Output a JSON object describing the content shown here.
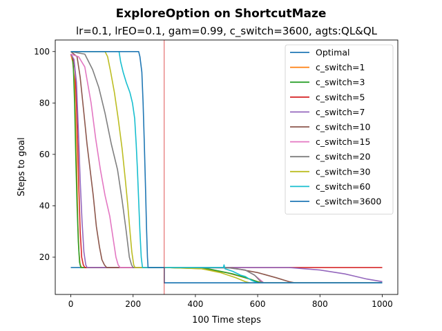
{
  "chart_data": {
    "type": "line",
    "title": "ExploreOption on ShortcutMaze",
    "subtitle": "lr=0.1, lrEO=0.1, gam=0.99, c_switch=3600, agts:QL&QL",
    "xlabel": "100 Time steps",
    "ylabel": "Steps to goal",
    "xlim": [
      -50,
      1050
    ],
    "ylim": [
      5.5,
      104.5
    ],
    "xticks": [
      0,
      200,
      400,
      600,
      800,
      1000
    ],
    "yticks": [
      20,
      40,
      60,
      80,
      100
    ],
    "grid": false,
    "legend_position": "top-right",
    "vline": {
      "x": 300,
      "color": "#d62728"
    },
    "series": [
      {
        "name": "Optimal",
        "color": "#1f77b4",
        "points": [
          [
            0,
            16
          ],
          [
            300,
            16
          ],
          [
            300,
            10
          ],
          [
            1000,
            10
          ]
        ]
      },
      {
        "name": "c_switch=1",
        "color": "#ff7f0e",
        "points": [
          [
            0,
            99
          ],
          [
            6,
            96
          ],
          [
            12,
            88
          ],
          [
            18,
            60
          ],
          [
            22,
            36
          ],
          [
            26,
            22
          ],
          [
            30,
            17
          ],
          [
            35,
            16
          ],
          [
            300,
            16
          ],
          [
            420,
            15.5
          ],
          [
            500,
            14
          ],
          [
            560,
            12
          ],
          [
            600,
            10.5
          ],
          [
            620,
            10
          ],
          [
            1000,
            10
          ]
        ]
      },
      {
        "name": "c_switch=3",
        "color": "#2ca02c",
        "points": [
          [
            0,
            99
          ],
          [
            5,
            98
          ],
          [
            8,
            94
          ],
          [
            12,
            80
          ],
          [
            16,
            58
          ],
          [
            20,
            40
          ],
          [
            24,
            26
          ],
          [
            28,
            18
          ],
          [
            32,
            16
          ],
          [
            300,
            16
          ],
          [
            440,
            15.5
          ],
          [
            520,
            13.5
          ],
          [
            575,
            11.5
          ],
          [
            610,
            10
          ],
          [
            1000,
            10
          ]
        ]
      },
      {
        "name": "c_switch=5",
        "color": "#d62728",
        "points": [
          [
            0,
            99
          ],
          [
            5,
            98
          ],
          [
            10,
            96
          ],
          [
            14,
            92
          ],
          [
            18,
            80
          ],
          [
            22,
            64
          ],
          [
            26,
            46
          ],
          [
            30,
            30
          ],
          [
            35,
            20
          ],
          [
            40,
            17
          ],
          [
            45,
            16
          ],
          [
            1000,
            16
          ]
        ]
      },
      {
        "name": "c_switch=7",
        "color": "#9467bd",
        "points": [
          [
            0,
            99
          ],
          [
            10,
            97
          ],
          [
            18,
            88
          ],
          [
            24,
            70
          ],
          [
            30,
            50
          ],
          [
            36,
            34
          ],
          [
            42,
            22
          ],
          [
            48,
            17
          ],
          [
            52,
            16
          ],
          [
            700,
            16
          ],
          [
            800,
            15
          ],
          [
            880,
            13.5
          ],
          [
            950,
            11.5
          ],
          [
            1000,
            10.5
          ]
        ]
      },
      {
        "name": "c_switch=10",
        "color": "#8c564b",
        "points": [
          [
            0,
            100
          ],
          [
            20,
            98
          ],
          [
            30,
            90
          ],
          [
            42,
            76
          ],
          [
            52,
            64
          ],
          [
            62,
            54
          ],
          [
            72,
            44
          ],
          [
            82,
            32
          ],
          [
            92,
            24
          ],
          [
            100,
            19
          ],
          [
            108,
            17
          ],
          [
            115,
            16
          ],
          [
            300,
            16
          ],
          [
            520,
            15.8
          ],
          [
            600,
            14
          ],
          [
            660,
            12
          ],
          [
            700,
            10.5
          ],
          [
            720,
            10
          ],
          [
            1000,
            10
          ]
        ]
      },
      {
        "name": "c_switch=15",
        "color": "#e377c2",
        "points": [
          [
            0,
            99
          ],
          [
            25,
            98
          ],
          [
            45,
            94
          ],
          [
            65,
            80
          ],
          [
            80,
            66
          ],
          [
            95,
            54
          ],
          [
            110,
            44
          ],
          [
            125,
            36
          ],
          [
            135,
            28
          ],
          [
            145,
            20
          ],
          [
            152,
            17
          ],
          [
            158,
            16
          ],
          [
            500,
            16
          ],
          [
            560,
            15
          ],
          [
            590,
            13
          ],
          [
            610,
            11
          ],
          [
            620,
            10
          ],
          [
            1000,
            10
          ]
        ]
      },
      {
        "name": "c_switch=20",
        "color": "#7f7f7f",
        "points": [
          [
            0,
            100
          ],
          [
            45,
            99
          ],
          [
            70,
            93
          ],
          [
            90,
            86
          ],
          [
            110,
            76
          ],
          [
            130,
            64
          ],
          [
            150,
            54
          ],
          [
            165,
            42
          ],
          [
            178,
            30
          ],
          [
            188,
            20
          ],
          [
            195,
            17
          ],
          [
            200,
            16
          ],
          [
            500,
            16
          ],
          [
            560,
            15
          ],
          [
            590,
            13
          ],
          [
            610,
            10.5
          ],
          [
            620,
            10
          ],
          [
            1000,
            10
          ]
        ]
      },
      {
        "name": "c_switch=30",
        "color": "#bcbd22",
        "points": [
          [
            0,
            100
          ],
          [
            110,
            100
          ],
          [
            118,
            98
          ],
          [
            128,
            92
          ],
          [
            140,
            84
          ],
          [
            152,
            74
          ],
          [
            165,
            62
          ],
          [
            175,
            50
          ],
          [
            183,
            40
          ],
          [
            190,
            30
          ],
          [
            196,
            22
          ],
          [
            202,
            17
          ],
          [
            206,
            16
          ],
          [
            300,
            16
          ],
          [
            420,
            15.5
          ],
          [
            480,
            14
          ],
          [
            530,
            12
          ],
          [
            560,
            10.5
          ],
          [
            575,
            10
          ],
          [
            1000,
            10
          ]
        ]
      },
      {
        "name": "c_switch=60",
        "color": "#17becf",
        "points": [
          [
            0,
            100
          ],
          [
            155,
            100
          ],
          [
            160,
            96
          ],
          [
            168,
            92
          ],
          [
            178,
            88
          ],
          [
            190,
            84
          ],
          [
            198,
            80
          ],
          [
            205,
            74
          ],
          [
            210,
            64
          ],
          [
            214,
            54
          ],
          [
            218,
            42
          ],
          [
            222,
            30
          ],
          [
            226,
            20
          ],
          [
            230,
            16
          ],
          [
            490,
            16
          ],
          [
            492,
            17
          ],
          [
            495,
            15.5
          ],
          [
            520,
            14.5
          ],
          [
            545,
            13
          ],
          [
            560,
            12.5
          ],
          [
            580,
            11
          ],
          [
            600,
            10
          ],
          [
            1000,
            10
          ]
        ]
      },
      {
        "name": "c_switch=3600",
        "color": "#1f77b4",
        "points": [
          [
            0,
            100
          ],
          [
            218,
            100
          ],
          [
            222,
            98
          ],
          [
            228,
            92
          ],
          [
            232,
            80
          ],
          [
            236,
            64
          ],
          [
            240,
            46
          ],
          [
            243,
            32
          ],
          [
            246,
            20
          ],
          [
            248,
            16
          ],
          [
            300,
            16
          ],
          [
            300,
            10
          ],
          [
            1000,
            10
          ]
        ]
      }
    ]
  }
}
